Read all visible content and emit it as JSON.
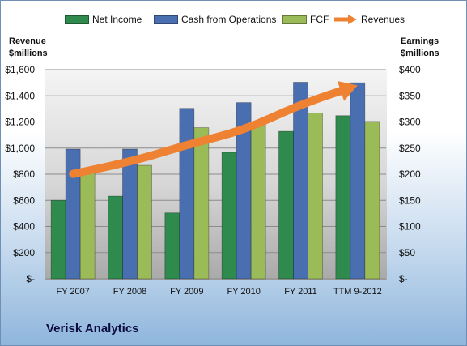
{
  "chart_data": {
    "type": "bar",
    "categories": [
      "FY 2007",
      "FY 2008",
      "FY 2009",
      "FY 2010",
      "FY 2011",
      "TTM 9-2012"
    ],
    "series": [
      {
        "name": "Net Income",
        "axis": "right",
        "color": "#2f8a4e",
        "values": [
          150,
          158,
          126,
          242,
          282,
          312
        ]
      },
      {
        "name": "Cash from Operations",
        "axis": "right",
        "color": "#4a6fb0",
        "values": [
          248,
          248,
          326,
          337,
          376,
          375
        ]
      },
      {
        "name": "FCF",
        "axis": "right",
        "color": "#9bbb59",
        "values": [
          208,
          217,
          289,
          297,
          317,
          301
        ]
      },
      {
        "name": "Revenues",
        "axis": "left",
        "type": "arrow",
        "color": "#ee8232",
        "values": [
          802,
          891,
          1026,
          1135,
          1335,
          1480
        ]
      }
    ],
    "left_axis": {
      "title_line1": "Revenue",
      "title_line2": "$millions",
      "ylim": [
        0,
        1600
      ],
      "ticks": [
        "$-",
        "$200",
        "$400",
        "$600",
        "$800",
        "$1,000",
        "$1,200",
        "$1,400",
        "$1,600"
      ]
    },
    "right_axis": {
      "title_line1": "Earnings",
      "title_line2": "$millions",
      "ylim": [
        0,
        400
      ],
      "ticks": [
        "$-",
        "$50",
        "$100",
        "$150",
        "$200",
        "$250",
        "$300",
        "$350",
        "$400"
      ]
    },
    "grid": true,
    "legend_position": "top"
  },
  "company_name": "Verisk Analytics"
}
